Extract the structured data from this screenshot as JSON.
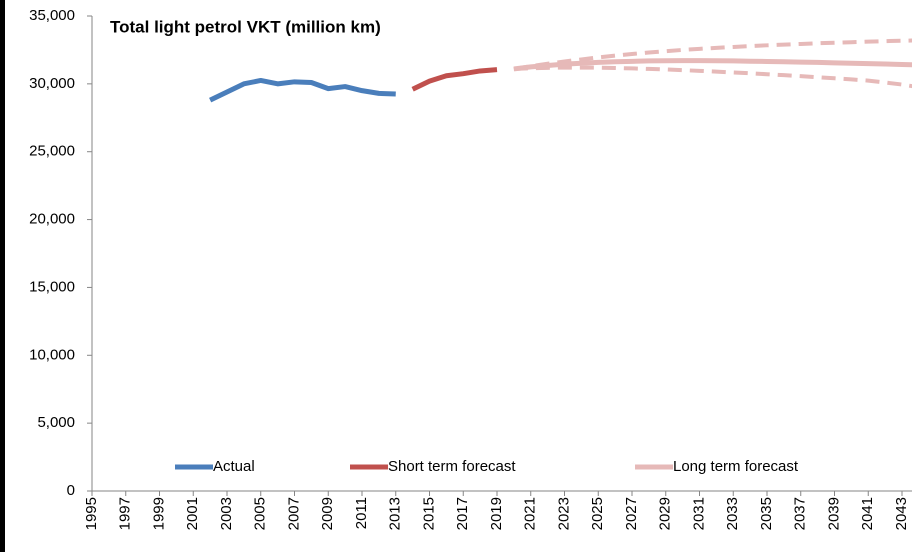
{
  "chart_data": {
    "type": "line",
    "title": "Total light petrol VKT (million km)",
    "xlim": [
      1995,
      2044
    ],
    "xticks": [
      1995,
      1997,
      1999,
      2001,
      2003,
      2005,
      2007,
      2009,
      2011,
      2013,
      2015,
      2017,
      2019,
      2021,
      2023,
      2025,
      2027,
      2029,
      2031,
      2033,
      2035,
      2037,
      2039,
      2041,
      2043
    ],
    "ylim": [
      0,
      35000
    ],
    "yticks": [
      0,
      {
        "value": 5000,
        "label": "5,000"
      },
      {
        "value": 10000,
        "label": "10,000"
      },
      {
        "value": 15000,
        "label": "15,000"
      },
      {
        "value": 20000,
        "label": "20,000"
      },
      {
        "value": 25000,
        "label": "25,000"
      },
      {
        "value": 30000,
        "label": "30,000"
      },
      {
        "value": 35000,
        "label": "35,000"
      }
    ],
    "grid": false,
    "legend": "bottom",
    "series": [
      {
        "name": "Actual",
        "color": "#4a7ebb",
        "x": [
          2002,
          2003,
          2004,
          2005,
          2006,
          2007,
          2008,
          2009,
          2010,
          2011,
          2012,
          2013
        ],
        "values": [
          28800,
          29400,
          30000,
          30250,
          30000,
          30150,
          30100,
          29650,
          29800,
          29500,
          29300,
          29250
        ]
      },
      {
        "name": "Short term forecast",
        "color": "#c0504d",
        "x": [
          2014,
          2015,
          2016,
          2017,
          2018,
          2019
        ],
        "values": [
          29600,
          30200,
          30600,
          30750,
          30950,
          31050
        ]
      },
      {
        "name": "Long term forecast",
        "color": "#e6b9b8",
        "x": [
          2020,
          2021,
          2022,
          2023,
          2024,
          2025,
          2026,
          2027,
          2028,
          2029,
          2030,
          2031,
          2032,
          2033,
          2034,
          2035,
          2036,
          2037,
          2038,
          2039,
          2040,
          2041,
          2042,
          2043,
          2044
        ],
        "values": [
          31100,
          31250,
          31350,
          31450,
          31520,
          31580,
          31630,
          31660,
          31690,
          31700,
          31710,
          31710,
          31700,
          31690,
          31670,
          31650,
          31630,
          31600,
          31580,
          31550,
          31520,
          31490,
          31460,
          31430,
          31400
        ]
      },
      {
        "color": "#e6b9b8",
        "dashed": true,
        "x": [
          2020,
          2021,
          2022,
          2023,
          2024,
          2025,
          2026,
          2027,
          2028,
          2029,
          2030,
          2031,
          2032,
          2033,
          2034,
          2035,
          2036,
          2037,
          2038,
          2039,
          2040,
          2041,
          2042,
          2043,
          2044
        ],
        "values": [
          31100,
          31300,
          31480,
          31650,
          31800,
          31950,
          32080,
          32200,
          32310,
          32410,
          32500,
          32580,
          32650,
          32720,
          32780,
          32840,
          32890,
          32940,
          32990,
          33030,
          33070,
          33110,
          33150,
          33180,
          33200
        ]
      },
      {
        "color": "#e6b9b8",
        "dashed": true,
        "x": [
          2020,
          2021,
          2022,
          2023,
          2024,
          2025,
          2026,
          2027,
          2028,
          2029,
          2030,
          2031,
          2032,
          2033,
          2034,
          2035,
          2036,
          2037,
          2038,
          2039,
          2040,
          2041,
          2042,
          2043,
          2044
        ],
        "values": [
          31100,
          31150,
          31180,
          31200,
          31200,
          31190,
          31170,
          31140,
          31100,
          31060,
          31010,
          30960,
          30900,
          30840,
          30780,
          30710,
          30640,
          30570,
          30490,
          30410,
          30330,
          30240,
          30100,
          29950,
          29750
        ]
      }
    ]
  }
}
